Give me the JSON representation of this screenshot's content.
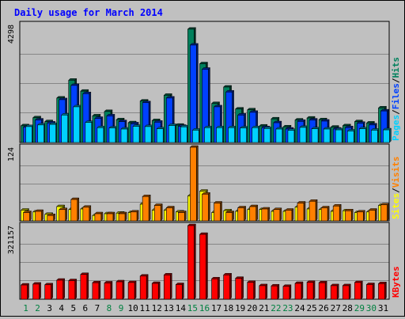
{
  "chart_data": {
    "type": "bar",
    "title": "Daily usage for March 2014",
    "title_color": "#0000ff",
    "days": [
      "1",
      "2",
      "3",
      "4",
      "5",
      "6",
      "7",
      "8",
      "9",
      "10",
      "11",
      "12",
      "13",
      "14",
      "15",
      "16",
      "17",
      "18",
      "19",
      "20",
      "21",
      "22",
      "23",
      "24",
      "25",
      "26",
      "27",
      "28",
      "29",
      "30",
      "31"
    ],
    "weekend_days": [
      "1",
      "2",
      "8",
      "9",
      "15",
      "16",
      "22",
      "23",
      "29",
      "30"
    ],
    "day_label_color": "#000000",
    "weekend_label_color": "#008040",
    "panels": [
      {
        "max_label": "4298",
        "ymax": 4298,
        "legend": [
          {
            "text": "Pages",
            "color": "#00d0ff"
          },
          {
            "text": "/",
            "color": "#000000"
          },
          {
            "text": "Files",
            "color": "#0040ff"
          },
          {
            "text": "/",
            "color": "#000000"
          },
          {
            "text": "Hits",
            "color": "#00805c"
          }
        ],
        "series": [
          {
            "name": "Hits",
            "color": "#00805c",
            "values": [
              610,
              900,
              760,
              1620,
              2270,
              1870,
              970,
              1130,
              830,
              720,
              1510,
              800,
              1720,
              630,
              4130,
              2870,
              1420,
              2020,
              1220,
              1190,
              600,
              860,
              570,
              820,
              890,
              830,
              560,
              610,
              760,
              710,
              1260
            ]
          },
          {
            "name": "Files",
            "color": "#0040ff",
            "values": [
              560,
              820,
              710,
              1560,
              2080,
              1780,
              880,
              970,
              760,
              680,
              1450,
              740,
              1620,
              590,
              3550,
              2670,
              1300,
              1840,
              1000,
              1100,
              540,
              720,
              490,
              770,
              820,
              780,
              490,
              540,
              700,
              640,
              1150
            ]
          },
          {
            "name": "Pages",
            "color": "#00d0ff",
            "values": [
              580,
              640,
              660,
              1000,
              1300,
              730,
              540,
              530,
              490,
              590,
              580,
              500,
              620,
              570,
              450,
              540,
              540,
              540,
              530,
              540,
              510,
              490,
              440,
              550,
              500,
              490,
              460,
              420,
              500,
              450,
              460
            ]
          }
        ]
      },
      {
        "max_label": "124",
        "ymax": 124,
        "legend": [
          {
            "text": "Sites",
            "color": "#ffff00"
          },
          {
            "text": "/",
            "color": "#000000"
          },
          {
            "text": "Visits",
            "color": "#ff8000"
          }
        ],
        "series": [
          {
            "name": "Sites",
            "color": "#ffff00",
            "values": [
              18,
              15,
              11,
              24,
              19,
              20,
              9,
              12,
              13,
              14,
              28,
              18,
              18,
              15,
              42,
              50,
              14,
              17,
              16,
              19,
              19,
              16,
              16,
              23,
              20,
              19,
              16,
              17,
              14,
              15,
              26
            ]
          },
          {
            "name": "Visits",
            "color": "#ff8000",
            "values": [
              14,
              16,
              9,
              19,
              36,
              23,
              12,
              12,
              12,
              15,
              41,
              26,
              22,
              14,
              124,
              45,
              30,
              14,
              22,
              24,
              20,
              19,
              18,
              30,
              33,
              22,
              25,
              17,
              15,
              18,
              27
            ]
          }
        ]
      },
      {
        "max_label": "321157",
        "ymax": 321157,
        "legend": [
          {
            "text": "KBytes",
            "color": "#ff0000"
          }
        ],
        "series": [
          {
            "name": "KBytes",
            "color": "#ff0000",
            "values": [
              62000,
              66000,
              63000,
              83000,
              81000,
              108000,
              72000,
              71000,
              76000,
              73000,
              101000,
              69000,
              106000,
              64000,
              321157,
              283000,
              89000,
              106000,
              91000,
              74000,
              59000,
              58000,
              56000,
              69000,
              74000,
              72000,
              59000,
              59000,
              73000,
              64000,
              68000
            ]
          }
        ]
      }
    ]
  }
}
